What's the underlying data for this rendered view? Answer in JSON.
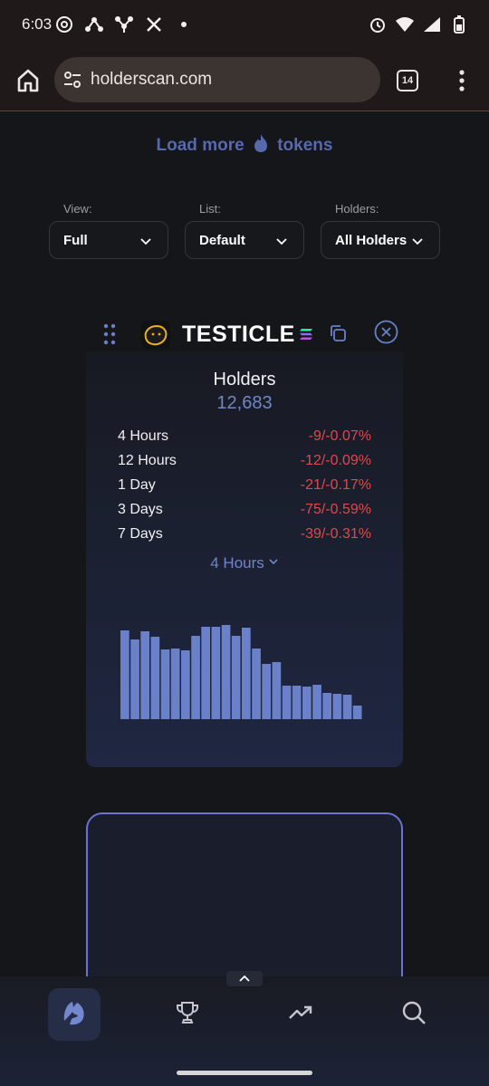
{
  "status_bar": {
    "time": "6:03",
    "left_icons": [
      "threads-icon",
      "network-icon",
      "network-icon",
      "x-icon",
      "dot-icon"
    ],
    "right_icons": [
      "alarm-icon",
      "wifi-icon",
      "signal-icon",
      "battery-icon"
    ]
  },
  "browser": {
    "url": "holderscan.com",
    "tab_count": "14"
  },
  "page": {
    "load_more_prefix": "Load more",
    "load_more_suffix": "tokens",
    "filters": {
      "view_label": "View:",
      "view_value": "Full",
      "list_label": "List:",
      "list_value": "Default",
      "holders_label": "Holders:",
      "holders_value": "All Holders"
    },
    "token": {
      "name": "TESTICLE",
      "holders_title": "Holders",
      "holders_count": "12,683",
      "stats": [
        {
          "label": "4 Hours",
          "value": "-9/-0.07%"
        },
        {
          "label": "12 Hours",
          "value": "-12/-0.09%"
        },
        {
          "label": "1 Day",
          "value": "-21/-0.17%"
        },
        {
          "label": "3 Days",
          "value": "-75/-0.59%"
        },
        {
          "label": "7 Days",
          "value": "-39/-0.31%"
        }
      ],
      "period_selected": "4 Hours"
    }
  },
  "chart_data": {
    "type": "bar",
    "values": [
      98,
      88,
      97,
      91,
      77,
      78,
      76,
      92,
      102,
      102,
      104,
      92,
      101,
      78,
      61,
      63,
      37,
      37,
      36,
      38,
      29,
      28,
      27,
      15
    ],
    "bar_color": "#6a80c9",
    "grid": false,
    "ylim": [
      0,
      110
    ]
  },
  "colors": {
    "accent": "#6f86c8",
    "negative": "#e0484c",
    "card_border": "#6c73d2"
  },
  "nav": {
    "items": [
      "logo-icon",
      "trophy-icon",
      "trending-icon",
      "search-icon"
    ],
    "active": 0
  }
}
